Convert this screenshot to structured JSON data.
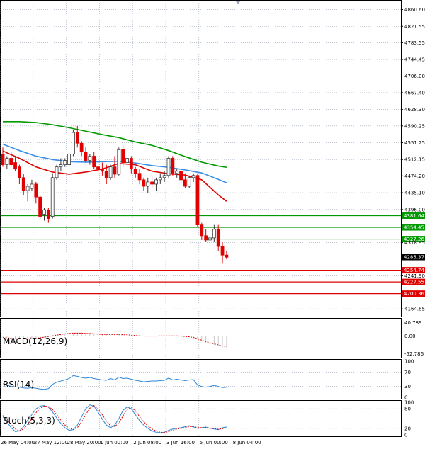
{
  "chart_data": {
    "type": "candlestick",
    "instrument_timeframe": "H4",
    "colors": {
      "bull_candle": "#3a3a3a",
      "bear_candle": "#e00000",
      "ma_green": "#009900",
      "ma_blue": "#3a8ee6",
      "ma_red": "#e00000",
      "support_line": "#e00000",
      "resistance_line": "#009900",
      "grid": "#9aa4b8",
      "macd_histogram": "#c8c8c8",
      "macd_signal": "#e00000",
      "rsi_line": "#2e86d6",
      "stoch_main": "#2e86d6",
      "stoch_signal": "#e00000"
    },
    "price_axis": {
      "ylim": [
        4157,
        4873
      ],
      "tick_labels": [
        "4860.60",
        "4821.55",
        "4783.55",
        "4744.45",
        "4706.00",
        "4667.40",
        "4628.30",
        "4590.25",
        "4551.25",
        "4512.15",
        "4474.20",
        "4435.10",
        "4396.00",
        "4318.95",
        "4241.90",
        "4164.85"
      ]
    },
    "time_axis": {
      "tick_labels": [
        "26 May 04:00",
        "27 May 12:00",
        "28 May 20:00",
        "1 Jun 00:00",
        "2 Jun 08:00",
        "3 Jun 16:00",
        "5 Jun 00:00",
        "8 Jun 04:00"
      ],
      "tick_bar_index": [
        0,
        8,
        16,
        24,
        32,
        40,
        48,
        56
      ]
    },
    "candles_ohlc": [
      [
        4525,
        4540,
        4495,
        4500
      ],
      [
        4500,
        4520,
        4490,
        4515
      ],
      [
        4515,
        4530,
        4495,
        4500
      ],
      [
        4505,
        4520,
        4485,
        4490
      ],
      [
        4495,
        4500,
        4455,
        4470
      ],
      [
        4470,
        4478,
        4430,
        4440
      ],
      [
        4440,
        4455,
        4415,
        4450
      ],
      [
        4445,
        4465,
        4440,
        4455
      ],
      [
        4455,
        4460,
        4410,
        4425
      ],
      [
        4425,
        4430,
        4375,
        4380
      ],
      [
        4385,
        4400,
        4370,
        4395
      ],
      [
        4395,
        4400,
        4365,
        4375
      ],
      [
        4380,
        4480,
        4375,
        4470
      ],
      [
        4470,
        4500,
        4465,
        4495
      ],
      [
        4495,
        4515,
        4485,
        4500
      ],
      [
        4500,
        4515,
        4495,
        4510
      ],
      [
        4500,
        4530,
        4495,
        4525
      ],
      [
        4525,
        4580,
        4520,
        4575
      ],
      [
        4575,
        4590,
        4540,
        4550
      ],
      [
        4550,
        4555,
        4520,
        4530
      ],
      [
        4530,
        4540,
        4505,
        4510
      ],
      [
        4510,
        4525,
        4500,
        4520
      ],
      [
        4520,
        4530,
        4490,
        4495
      ],
      [
        4495,
        4505,
        4480,
        4490
      ],
      [
        4490,
        4505,
        4475,
        4485
      ],
      [
        4485,
        4500,
        4455,
        4470
      ],
      [
        4470,
        4500,
        4465,
        4495
      ],
      [
        4495,
        4520,
        4470,
        4478
      ],
      [
        4478,
        4540,
        4475,
        4535
      ],
      [
        4535,
        4545,
        4495,
        4505
      ],
      [
        4505,
        4520,
        4495,
        4515
      ],
      [
        4515,
        4520,
        4480,
        4490
      ],
      [
        4490,
        4495,
        4470,
        4480
      ],
      [
        4480,
        4490,
        4455,
        4465
      ],
      [
        4465,
        4470,
        4440,
        4450
      ],
      [
        4450,
        4470,
        4435,
        4460
      ],
      [
        4460,
        4475,
        4445,
        4455
      ],
      [
        4455,
        4470,
        4440,
        4465
      ],
      [
        4465,
        4480,
        4455,
        4470
      ],
      [
        4470,
        4485,
        4460,
        4475
      ],
      [
        4475,
        4520,
        4470,
        4515
      ],
      [
        4515,
        4520,
        4475,
        4480
      ],
      [
        4480,
        4490,
        4470,
        4485
      ],
      [
        4485,
        4490,
        4455,
        4465
      ],
      [
        4465,
        4480,
        4445,
        4450
      ],
      [
        4450,
        4475,
        4445,
        4470
      ],
      [
        4470,
        4480,
        4460,
        4475
      ],
      [
        4475,
        4480,
        4355,
        4360
      ],
      [
        4360,
        4365,
        4325,
        4335
      ],
      [
        4335,
        4350,
        4320,
        4325
      ],
      [
        4325,
        4340,
        4310,
        4330
      ],
      [
        4330,
        4360,
        4320,
        4350
      ],
      [
        4350,
        4360,
        4300,
        4310
      ],
      [
        4310,
        4320,
        4270,
        4290
      ],
      [
        4290,
        4300,
        4280,
        4285
      ]
    ],
    "moving_averages": [
      {
        "color": "green",
        "values": [
          [
            0,
            4600
          ],
          [
            4,
            4600
          ],
          [
            8,
            4598
          ],
          [
            12,
            4593
          ],
          [
            16,
            4586
          ],
          [
            20,
            4578
          ],
          [
            24,
            4570
          ],
          [
            28,
            4563
          ],
          [
            32,
            4553
          ],
          [
            36,
            4545
          ],
          [
            40,
            4533
          ],
          [
            44,
            4519
          ],
          [
            48,
            4506
          ],
          [
            52,
            4497
          ],
          [
            54,
            4494
          ]
        ]
      },
      {
        "color": "blue",
        "values": [
          [
            0,
            4548
          ],
          [
            4,
            4533
          ],
          [
            8,
            4520
          ],
          [
            12,
            4512
          ],
          [
            16,
            4507
          ],
          [
            20,
            4506
          ],
          [
            24,
            4507
          ],
          [
            28,
            4508
          ],
          [
            32,
            4504
          ],
          [
            36,
            4498
          ],
          [
            40,
            4494
          ],
          [
            44,
            4488
          ],
          [
            48,
            4481
          ],
          [
            52,
            4466
          ],
          [
            54,
            4458
          ]
        ]
      },
      {
        "color": "red",
        "values": [
          [
            0,
            4532
          ],
          [
            4,
            4515
          ],
          [
            8,
            4495
          ],
          [
            12,
            4483
          ],
          [
            16,
            4478
          ],
          [
            20,
            4483
          ],
          [
            24,
            4490
          ],
          [
            28,
            4503
          ],
          [
            32,
            4500
          ],
          [
            36,
            4485
          ],
          [
            40,
            4479
          ],
          [
            44,
            4476
          ],
          [
            48,
            4465
          ],
          [
            52,
            4430
          ],
          [
            54,
            4415
          ]
        ]
      }
    ],
    "horizontal_levels": [
      {
        "value": 4381.64,
        "label": "4381.64",
        "color": "green"
      },
      {
        "value": 4354.45,
        "label": "4354.45",
        "color": "green"
      },
      {
        "value": 4327.26,
        "label": "4327.26",
        "color": "green"
      },
      {
        "value": 4254.74,
        "label": "4254.74",
        "color": "red"
      },
      {
        "value": 4227.55,
        "label": "4227.55",
        "color": "red"
      },
      {
        "value": 4200.36,
        "label": "4200.36",
        "color": "red"
      }
    ],
    "current_price": {
      "value": 4285.37,
      "label": "4285.37"
    },
    "macd": {
      "label": "MACD(12,26,9)",
      "ylim": [
        -60,
        48
      ],
      "tick_labels": [
        "40.789",
        "0.00",
        "-52.786"
      ],
      "histogram": [
        -2,
        -4,
        -5,
        -6,
        -7,
        -8,
        -9,
        -8,
        -7,
        -6,
        -5,
        -3,
        -1,
        2,
        4,
        6,
        8,
        10,
        11,
        10,
        9,
        8,
        7,
        6,
        5,
        4,
        4,
        5,
        6,
        5,
        4,
        3,
        2,
        1,
        0,
        -1,
        -1,
        0,
        1,
        1,
        2,
        2,
        1,
        0,
        -1,
        -2,
        -4,
        -10,
        -15,
        -20,
        -24,
        -27,
        -30,
        -33,
        -35
      ],
      "signal": [
        -4,
        -5,
        -6,
        -7,
        -8,
        -8,
        -8,
        -7,
        -6,
        -5,
        -3,
        -1,
        1,
        3,
        5,
        7,
        8,
        9,
        9,
        9,
        8,
        8,
        7,
        6,
        5,
        5,
        5,
        5,
        5,
        4,
        4,
        3,
        2,
        1,
        0,
        0,
        0,
        0,
        1,
        1,
        1,
        1,
        1,
        0,
        -1,
        -2,
        -4,
        -8,
        -12,
        -16,
        -20,
        -23,
        -26,
        -29,
        -31
      ]
    },
    "rsi": {
      "label": "RSI(14)",
      "ylim": [
        0,
        100
      ],
      "tick_labels": [
        "100",
        "70",
        "30",
        "0"
      ],
      "values": [
        38,
        34,
        30,
        29,
        28,
        26,
        25,
        27,
        25,
        23,
        22,
        24,
        36,
        42,
        45,
        48,
        52,
        60,
        58,
        55,
        53,
        55,
        52,
        50,
        48,
        47,
        52,
        48,
        56,
        52,
        53,
        50,
        47,
        45,
        43,
        44,
        45,
        45,
        46,
        47,
        53,
        48,
        50,
        48,
        46,
        48,
        49,
        34,
        30,
        28,
        30,
        33,
        30,
        27,
        28
      ]
    },
    "stoch": {
      "label": "Stoch(5,3,3)",
      "ylim": [
        0,
        100
      ],
      "tick_labels": [
        "100",
        "80",
        "20",
        "0"
      ],
      "main": [
        60,
        40,
        22,
        10,
        12,
        25,
        45,
        62,
        80,
        88,
        90,
        85,
        70,
        52,
        35,
        22,
        14,
        16,
        30,
        55,
        80,
        92,
        88,
        70,
        48,
        30,
        22,
        30,
        50,
        75,
        86,
        80,
        62,
        44,
        30,
        20,
        12,
        8,
        6,
        8,
        14,
        18,
        20,
        22,
        25,
        28,
        24,
        20,
        22,
        24,
        20,
        18,
        16,
        22,
        24
      ],
      "signal": [
        55,
        48,
        32,
        18,
        12,
        18,
        32,
        50,
        68,
        82,
        88,
        87,
        78,
        62,
        45,
        30,
        20,
        16,
        22,
        40,
        62,
        82,
        90,
        80,
        62,
        42,
        28,
        26,
        36,
        58,
        78,
        84,
        74,
        56,
        40,
        28,
        18,
        12,
        8,
        7,
        10,
        14,
        18,
        20,
        22,
        25,
        25,
        23,
        22,
        22,
        21,
        19,
        17,
        19,
        22
      ]
    }
  }
}
